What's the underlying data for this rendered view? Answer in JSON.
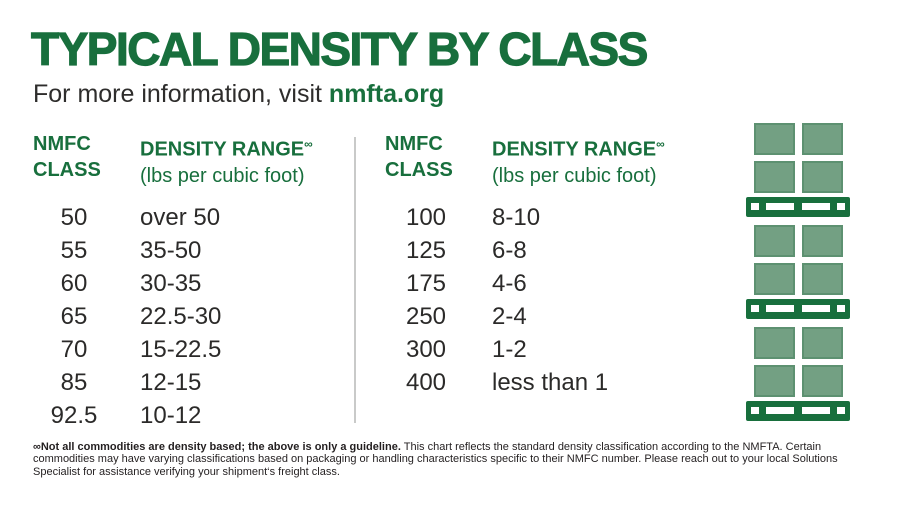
{
  "colors": {
    "dark_green": "#186f3d",
    "box_green": "#73a083",
    "box_border_green": "#5d9171",
    "body_text": "#2b2a29",
    "divider_gray": "#c9cac9"
  },
  "header": {
    "title": "TYPICAL DENSITY BY CLASS",
    "subtitle_text": "For more information, visit",
    "subtitle_link": "nmfta.org"
  },
  "tables": {
    "class_header_top": "NMFC",
    "class_header_bottom": "CLASS",
    "density_header": "DENSITY RANGE",
    "density_header_sup": "∞",
    "density_unit": "(lbs per cubic foot)",
    "left": {
      "rows": [
        {
          "cls": "50",
          "range": "over 50"
        },
        {
          "cls": "55",
          "range": "35-50"
        },
        {
          "cls": "60",
          "range": "30-35"
        },
        {
          "cls": "65",
          "range": "22.5-30"
        },
        {
          "cls": "70",
          "range": "15-22.5"
        },
        {
          "cls": "85",
          "range": "12-15"
        },
        {
          "cls": "92.5",
          "range": "10-12"
        }
      ]
    },
    "right": {
      "rows": [
        {
          "cls": "100",
          "range": "8-10"
        },
        {
          "cls": "125",
          "range": "6-8"
        },
        {
          "cls": "175",
          "range": "4-6"
        },
        {
          "cls": "250",
          "range": "2-4"
        },
        {
          "cls": "300",
          "range": "1-2"
        },
        {
          "cls": "400",
          "range": "less than 1"
        }
      ]
    }
  },
  "footnote": {
    "bold": "∞Not all commodities are density based; the above is only a guideline.",
    "text": " This chart reflects the standard density classification according to the NMFTA. Certain commodities may have varying classifications based on packaging or handling characteristics specific to their NMFC number. Please reach out to your local Solutions Specialist for assistance verifying your shipment‘s freight class."
  },
  "graphic": {
    "name": "stacked-pallets",
    "stacks": 3,
    "boxes_per_stack": 4
  },
  "chart_data": {
    "type": "table",
    "title": "TYPICAL DENSITY BY CLASS",
    "columns": [
      "NMFC CLASS",
      "DENSITY RANGE (lbs per cubic foot)"
    ],
    "rows": [
      [
        "50",
        "over 50"
      ],
      [
        "55",
        "35-50"
      ],
      [
        "60",
        "30-35"
      ],
      [
        "65",
        "22.5-30"
      ],
      [
        "70",
        "15-22.5"
      ],
      [
        "85",
        "12-15"
      ],
      [
        "92.5",
        "10-12"
      ],
      [
        "100",
        "8-10"
      ],
      [
        "125",
        "6-8"
      ],
      [
        "175",
        "4-6"
      ],
      [
        "250",
        "2-4"
      ],
      [
        "300",
        "1-2"
      ],
      [
        "400",
        "less than 1"
      ]
    ],
    "footnote": "Not all commodities are density based; the above is only a guideline."
  }
}
